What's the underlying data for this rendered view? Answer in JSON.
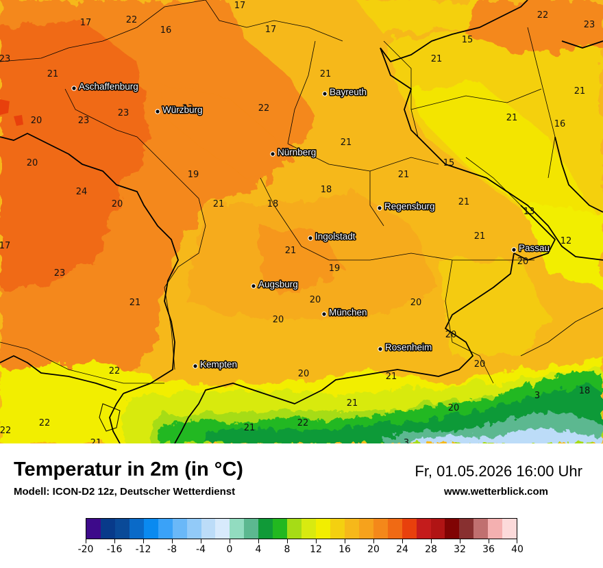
{
  "title": "Temperatur in 2m (in °C)",
  "subtitle": "Modell: ICON-D2 12z, Deutscher Wetterdienst",
  "datetime": "Fr, 01.05.2026 16:00 Uhr",
  "website": "www.wetterblick.com",
  "colors": {
    "orange_dark": "#f06a14",
    "orange": "#f4881a",
    "amber": "#f6a21c",
    "yellow_orange": "#f6b81a",
    "yellow": "#f4d010",
    "yellow_light": "#f2ee00",
    "lime": "#d8ea10",
    "green_light": "#a6dc16",
    "green": "#22b820",
    "green_dark": "#109a38",
    "border": "#000000"
  },
  "cities": [
    {
      "name": "Aschaffenburg"
    },
    {
      "name": "Würzburg"
    },
    {
      "name": "Bayreuth"
    },
    {
      "name": "Nürnberg"
    },
    {
      "name": "Regensburg"
    },
    {
      "name": "Ingolstadt"
    },
    {
      "name": "Passau"
    },
    {
      "name": "Augsburg"
    },
    {
      "name": "München"
    },
    {
      "name": "Rosenheim"
    },
    {
      "name": "Kempten"
    }
  ],
  "temperatures": [
    "17",
    "22",
    "16",
    "17",
    "17",
    "15",
    "22",
    "23",
    "21",
    "23",
    "21",
    "21",
    "23",
    "20",
    "23",
    "23",
    "22",
    "21",
    "16",
    "21",
    "20",
    "15",
    "19",
    "21",
    "24",
    "20",
    "18",
    "21",
    "18",
    "21",
    "13",
    "21",
    "12",
    "17",
    "21",
    "19",
    "20",
    "23",
    "21",
    "20",
    "20",
    "20",
    "20",
    "20",
    "22",
    "21",
    "21",
    "20",
    "18",
    "3",
    "22",
    "21",
    "20",
    "22",
    "21",
    "22",
    "21",
    "3"
  ],
  "legend": {
    "colors": [
      "#3d0a8a",
      "#083a8a",
      "#0a4a98",
      "#0a6ac8",
      "#0a8af0",
      "#3aa2f8",
      "#6ab8f8",
      "#92caf8",
      "#bcdcf8",
      "#d8eafc",
      "#92dcc0",
      "#5cb890",
      "#109a38",
      "#22b820",
      "#a6dc16",
      "#d8ea10",
      "#f2ee00",
      "#f4d010",
      "#f6b81a",
      "#f6a21c",
      "#f4881a",
      "#f06a14",
      "#e8400c",
      "#c41c1c",
      "#b01414",
      "#800404",
      "#883030",
      "#c07070",
      "#f4b0b0",
      "#fcdada"
    ],
    "ticks": [
      "-20",
      "-16",
      "-12",
      "-8",
      "-4",
      "0",
      "4",
      "8",
      "12",
      "16",
      "20",
      "24",
      "28",
      "32",
      "36",
      "40"
    ]
  }
}
